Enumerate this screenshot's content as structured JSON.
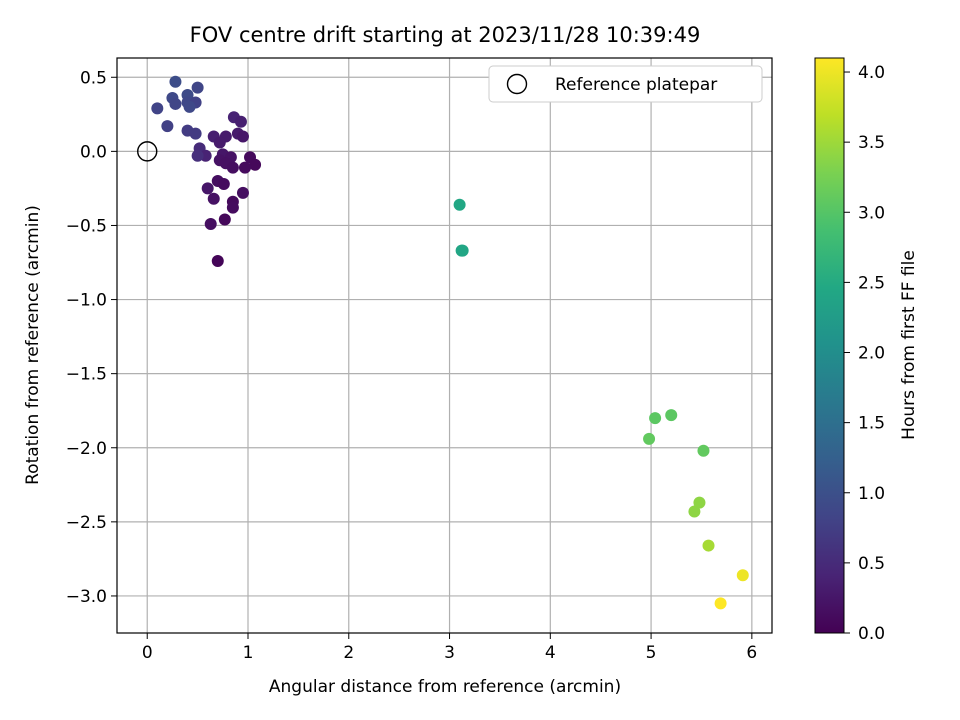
{
  "chart_data": {
    "type": "scatter",
    "title": "FOV centre drift starting at 2023/11/28 10:39:49",
    "xlabel": "Angular distance from reference (arcmin)",
    "ylabel": "Rotation from reference (arcmin)",
    "xlim": [
      -0.3,
      6.2
    ],
    "ylim": [
      -3.25,
      0.63
    ],
    "xticks": [
      0,
      1,
      2,
      3,
      4,
      5,
      6
    ],
    "yticks": [
      -3.0,
      -2.5,
      -2.0,
      -1.5,
      -1.0,
      -0.5,
      0.0,
      0.5
    ],
    "xtick_labels": [
      "0",
      "1",
      "2",
      "3",
      "4",
      "5",
      "6"
    ],
    "ytick_labels": [
      "−3.0",
      "−2.5",
      "−2.0",
      "−1.5",
      "−1.0",
      "−0.5",
      "0.0",
      "0.5"
    ],
    "grid": true,
    "colormap": "viridis",
    "colorbar": {
      "label": "Hours from first FF file",
      "range": [
        0.0,
        4.1
      ],
      "ticks": [
        0.0,
        0.5,
        1.0,
        1.5,
        2.0,
        2.5,
        3.0,
        3.5,
        4.0
      ],
      "tick_labels": [
        "0.0",
        "0.5",
        "1.0",
        "1.5",
        "2.0",
        "2.5",
        "3.0",
        "3.5",
        "4.0"
      ]
    },
    "legend": {
      "placement": "upper right",
      "entries": [
        "Reference platepar"
      ]
    },
    "reference_point": {
      "x": 0.0,
      "y": 0.0,
      "label": "Reference platepar"
    },
    "points": [
      {
        "x": 0.28,
        "y": 0.47,
        "t": 0.95
      },
      {
        "x": 0.5,
        "y": 0.43,
        "t": 0.85
      },
      {
        "x": 0.25,
        "y": 0.36,
        "t": 0.9
      },
      {
        "x": 0.4,
        "y": 0.38,
        "t": 0.92
      },
      {
        "x": 0.28,
        "y": 0.32,
        "t": 0.85
      },
      {
        "x": 0.4,
        "y": 0.33,
        "t": 0.88
      },
      {
        "x": 0.48,
        "y": 0.33,
        "t": 0.8
      },
      {
        "x": 0.1,
        "y": 0.29,
        "t": 0.82
      },
      {
        "x": 0.42,
        "y": 0.3,
        "t": 0.9
      },
      {
        "x": 0.86,
        "y": 0.23,
        "t": 0.4
      },
      {
        "x": 0.93,
        "y": 0.2,
        "t": 0.35
      },
      {
        "x": 0.2,
        "y": 0.17,
        "t": 0.78
      },
      {
        "x": 0.4,
        "y": 0.14,
        "t": 0.72
      },
      {
        "x": 0.48,
        "y": 0.12,
        "t": 0.7
      },
      {
        "x": 0.9,
        "y": 0.12,
        "t": 0.3
      },
      {
        "x": 0.66,
        "y": 0.1,
        "t": 0.35
      },
      {
        "x": 0.78,
        "y": 0.1,
        "t": 0.3
      },
      {
        "x": 0.95,
        "y": 0.1,
        "t": 0.25
      },
      {
        "x": 0.72,
        "y": 0.06,
        "t": 0.3
      },
      {
        "x": 0.52,
        "y": 0.02,
        "t": 0.5
      },
      {
        "x": 0.75,
        "y": -0.02,
        "t": 0.25
      },
      {
        "x": 0.58,
        "y": -0.03,
        "t": 0.4
      },
      {
        "x": 0.5,
        "y": -0.03,
        "t": 0.55
      },
      {
        "x": 0.83,
        "y": -0.04,
        "t": 0.2
      },
      {
        "x": 1.02,
        "y": -0.04,
        "t": 0.1
      },
      {
        "x": 0.72,
        "y": -0.06,
        "t": 0.2
      },
      {
        "x": 0.78,
        "y": -0.08,
        "t": 0.18
      },
      {
        "x": 1.07,
        "y": -0.09,
        "t": 0.08
      },
      {
        "x": 0.85,
        "y": -0.11,
        "t": 0.15
      },
      {
        "x": 0.97,
        "y": -0.11,
        "t": 0.1
      },
      {
        "x": 0.7,
        "y": -0.2,
        "t": 0.15
      },
      {
        "x": 0.76,
        "y": -0.22,
        "t": 0.12
      },
      {
        "x": 0.6,
        "y": -0.25,
        "t": 0.25
      },
      {
        "x": 0.95,
        "y": -0.28,
        "t": 0.15
      },
      {
        "x": 0.66,
        "y": -0.32,
        "t": 0.2
      },
      {
        "x": 0.85,
        "y": -0.34,
        "t": 0.1
      },
      {
        "x": 0.85,
        "y": -0.38,
        "t": 0.12
      },
      {
        "x": 0.77,
        "y": -0.46,
        "t": 0.08
      },
      {
        "x": 0.63,
        "y": -0.49,
        "t": 0.15
      },
      {
        "x": 0.7,
        "y": -0.74,
        "t": 0.05
      },
      {
        "x": 3.1,
        "y": -0.36,
        "t": 2.45
      },
      {
        "x": 3.12,
        "y": -0.67,
        "t": 2.4
      },
      {
        "x": 3.13,
        "y": -0.67,
        "t": 2.42
      },
      {
        "x": 5.2,
        "y": -1.78,
        "t": 3.05
      },
      {
        "x": 5.04,
        "y": -1.8,
        "t": 3.05
      },
      {
        "x": 4.98,
        "y": -1.94,
        "t": 3.1
      },
      {
        "x": 5.52,
        "y": -2.02,
        "t": 3.1
      },
      {
        "x": 5.48,
        "y": -2.37,
        "t": 3.4
      },
      {
        "x": 5.43,
        "y": -2.43,
        "t": 3.4
      },
      {
        "x": 5.57,
        "y": -2.66,
        "t": 3.55
      },
      {
        "x": 5.91,
        "y": -2.86,
        "t": 4.0
      },
      {
        "x": 5.69,
        "y": -3.05,
        "t": 4.1
      }
    ]
  }
}
